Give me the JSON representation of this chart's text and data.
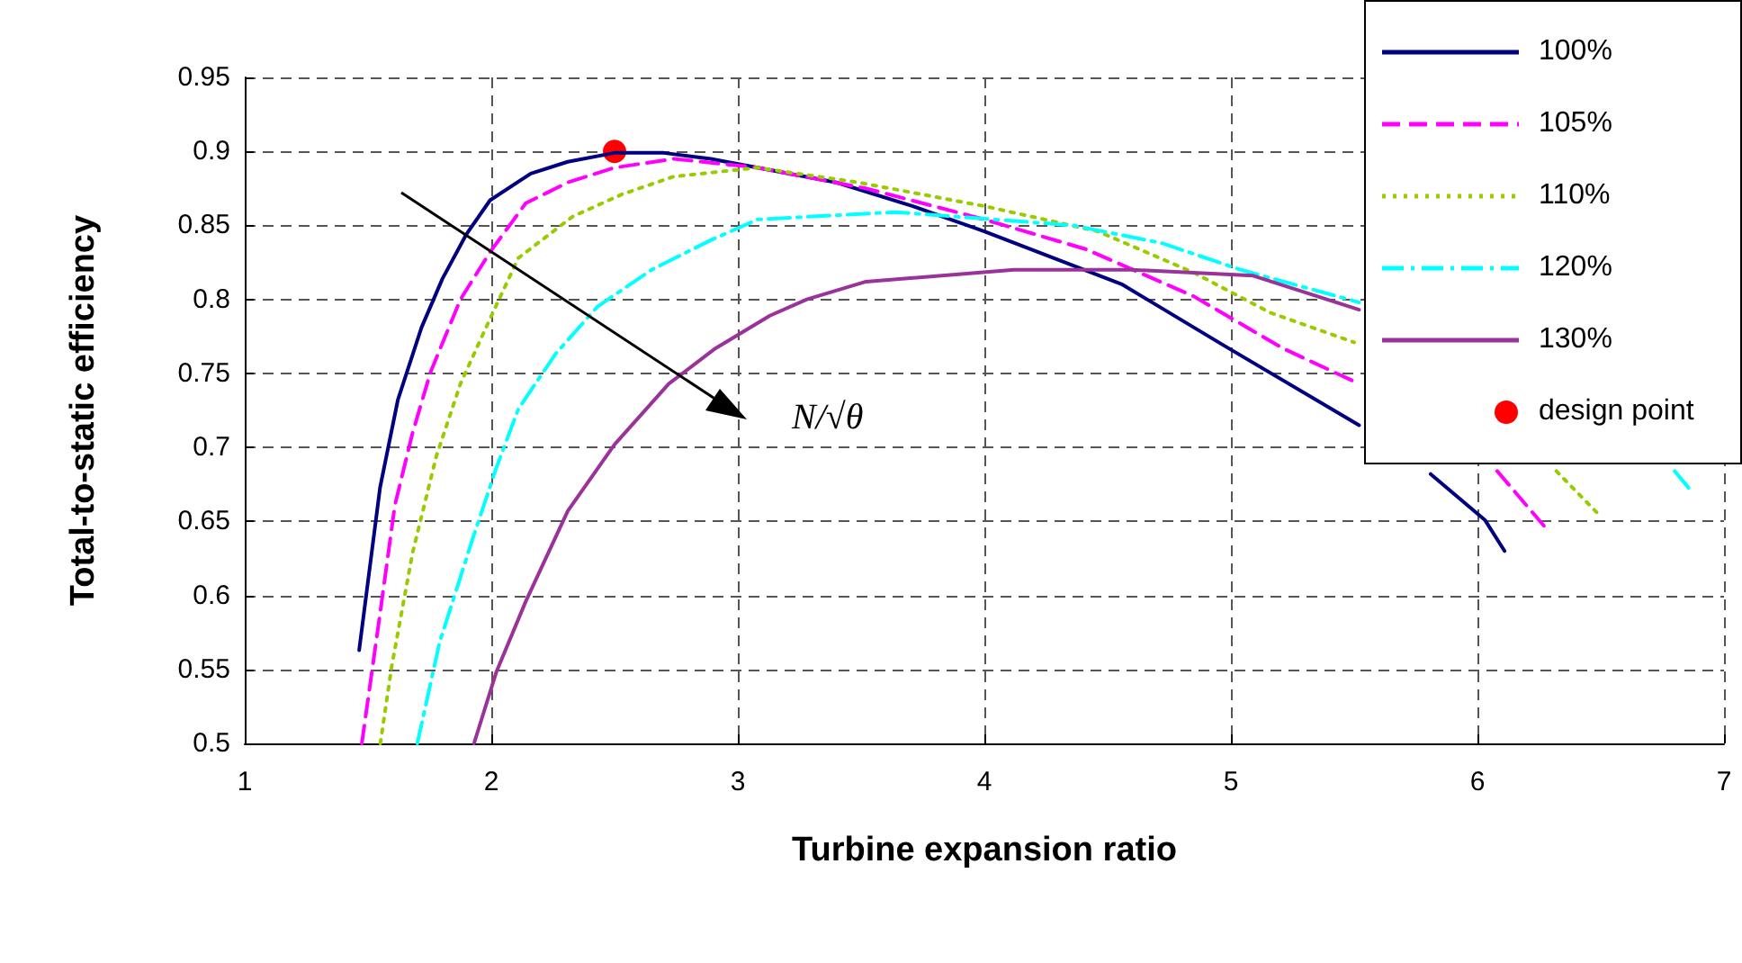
{
  "chart_data": {
    "type": "line",
    "xlabel": "Turbine expansion ratio",
    "ylabel": "Total-to-static efficiency",
    "xlim": [
      1,
      7
    ],
    "ylim": [
      0.5,
      0.95
    ],
    "xticks": [
      1,
      2,
      3,
      4,
      5,
      6,
      7
    ],
    "yticks": [
      0.5,
      0.55,
      0.6,
      0.65,
      0.7,
      0.75,
      0.8,
      0.85,
      0.9,
      0.95
    ],
    "grid": true,
    "legend": "top right",
    "annotations": [
      "N/√θ"
    ],
    "series": [
      {
        "name": "100%",
        "color": "#000080",
        "line_style": "solid",
        "marker": "none",
        "x": [
          1.464,
          1.549,
          1.621,
          1.717,
          1.802,
          1.899,
          1.995,
          2.16,
          2.31,
          2.5,
          2.7,
          2.89,
          3.4,
          3.71,
          4.0,
          4.56,
          4.97,
          5.52,
          5.65,
          5.81,
          6.03,
          6.11
        ],
        "values": [
          0.563,
          0.673,
          0.732,
          0.781,
          0.814,
          0.844,
          0.867,
          0.885,
          0.893,
          0.899,
          0.899,
          0.895,
          0.879,
          0.863,
          0.846,
          0.81,
          0.769,
          0.715,
          null,
          0.682,
          0.651,
          0.63
        ]
      },
      {
        "name": "105%",
        "color": "#ff00ff",
        "line_style": "dashed",
        "marker": "none",
        "x": [
          1.475,
          1.549,
          1.609,
          1.681,
          1.754,
          1.875,
          1.995,
          2.14,
          2.31,
          2.5,
          2.74,
          3.08,
          3.52,
          4.0,
          4.41,
          4.85,
          5.21,
          5.52,
          5.8,
          6.08,
          6.29
        ],
        "values": [
          0.5,
          0.588,
          0.661,
          0.71,
          0.751,
          0.8,
          0.832,
          0.865,
          0.879,
          0.889,
          0.895,
          0.889,
          0.875,
          0.854,
          0.834,
          0.802,
          0.767,
          0.743,
          null,
          0.684,
          0.643
        ]
      },
      {
        "name": "110%",
        "color": "#99cc00",
        "line_style": "dotted",
        "marker": "none",
        "x": [
          1.55,
          1.596,
          1.681,
          1.777,
          1.875,
          1.995,
          2.11,
          2.33,
          2.53,
          2.74,
          3.08,
          3.49,
          4.0,
          4.46,
          4.85,
          5.16,
          5.5,
          5.9,
          6.32,
          6.49
        ],
        "values": [
          0.5,
          0.552,
          0.629,
          0.694,
          0.743,
          0.787,
          0.828,
          0.856,
          0.871,
          0.883,
          0.889,
          0.879,
          0.863,
          0.846,
          0.818,
          0.791,
          0.771,
          null,
          0.684,
          0.655
        ]
      },
      {
        "name": "120%",
        "color": "#00ffff",
        "line_style": "dashdot",
        "marker": "none",
        "x": [
          1.7,
          1.79,
          1.922,
          2.02,
          2.11,
          2.26,
          2.43,
          2.65,
          2.89,
          3.08,
          3.64,
          4.36,
          4.72,
          5.04,
          5.52,
          6.2,
          6.8,
          6.87
        ],
        "values": [
          0.5,
          0.568,
          0.637,
          0.686,
          0.726,
          0.763,
          0.795,
          0.82,
          0.84,
          0.854,
          0.859,
          0.85,
          0.838,
          0.82,
          0.798,
          null,
          0.684,
          0.67
        ]
      },
      {
        "name": "130%",
        "color": "#993399",
        "line_style": "solid",
        "marker": "none",
        "x": [
          1.93,
          2.02,
          2.14,
          2.31,
          2.5,
          2.72,
          2.91,
          3.13,
          3.28,
          3.52,
          4.12,
          4.6,
          5.09,
          5.52
        ],
        "values": [
          0.5,
          0.548,
          0.596,
          0.657,
          0.702,
          0.743,
          0.767,
          0.789,
          0.8,
          0.812,
          0.82,
          0.82,
          0.816,
          0.793
        ]
      },
      {
        "name": "design point",
        "type": "scatter",
        "color": "#ff0000",
        "marker": "circle",
        "x": [
          2.5
        ],
        "values": [
          0.9
        ]
      }
    ]
  }
}
